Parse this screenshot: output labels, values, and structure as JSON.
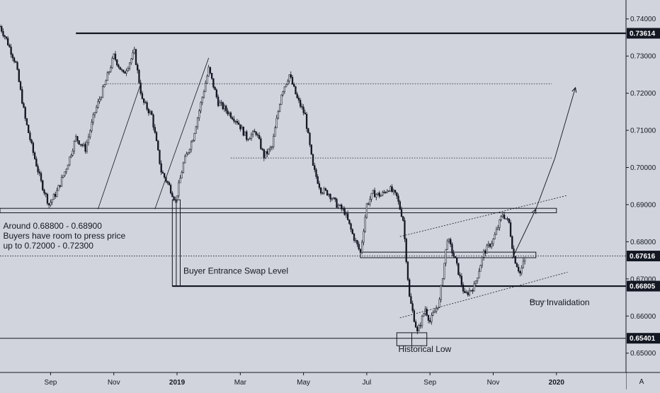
{
  "chart_data": {
    "type": "candlestick",
    "symbol_scale_button": "A",
    "y_axis": {
      "ylim": [
        0.6448,
        0.7451
      ],
      "ticks": [
        "0.74000",
        "0.73000",
        "0.72000",
        "0.71000",
        "0.70000",
        "0.69000",
        "0.68000",
        "0.67000",
        "0.66000",
        "0.65000"
      ],
      "tick_values": [
        0.74,
        0.73,
        0.72,
        0.71,
        0.7,
        0.69,
        0.68,
        0.67,
        0.66,
        0.65
      ]
    },
    "x_axis": {
      "ticks": [
        "Sep",
        "Nov",
        "2019",
        "Mar",
        "May",
        "Jul",
        "Sep",
        "Nov",
        "2020"
      ],
      "tick_positions": [
        0,
        2,
        4,
        6,
        8,
        10,
        12,
        14,
        16
      ],
      "bold_ticks": [
        "2019",
        "2020"
      ],
      "xlim": [
        -1.6,
        18.2
      ]
    },
    "price_labels": [
      {
        "text": "0.73614",
        "value": 0.73614
      },
      {
        "text": "0.67616",
        "value": 0.67616
      },
      {
        "text": "0.66805",
        "value": 0.66805
      },
      {
        "text": "0.65401",
        "value": 0.65401
      }
    ],
    "horizontal_levels": [
      {
        "value": 0.73614,
        "x_start": 0.8,
        "style": "solid-thick"
      },
      {
        "value": 0.66805,
        "x_start": 3.85,
        "style": "solid-thick"
      },
      {
        "value": 0.65401,
        "x_start": -1.6,
        "style": "solid"
      },
      {
        "value": 0.67616,
        "x_start": -1.6,
        "style": "dotted"
      },
      {
        "value": 0.72255,
        "x_start": 1.8,
        "x_end": 15.85,
        "style": "dotted"
      },
      {
        "value": 0.70255,
        "x_start": 5.7,
        "x_end": 15.85,
        "style": "dotted"
      },
      {
        "value": 0.66405,
        "x_start": 15.15,
        "x_end": 15.85,
        "style": "dotted"
      }
    ],
    "zones": [
      {
        "x_start": -1.6,
        "x_end": 16.0,
        "low": 0.6878,
        "high": 0.689
      },
      {
        "x_start": 9.8,
        "x_end": 15.35,
        "low": 0.6757,
        "high": 0.6772
      }
    ],
    "markers": [
      {
        "x_start": 3.85,
        "x_end": 4.1,
        "low": 0.66805,
        "high": 0.6913
      },
      {
        "x_start": 10.95,
        "x_end": 11.9,
        "low": 0.652,
        "high": 0.6555
      }
    ],
    "annotations": [
      {
        "lines": [
          "Around 0.68800 - 0.68900",
          "Buyers have room to press price",
          "up to 0.72000 - 0.72300"
        ],
        "x": -1.5,
        "value": 0.6835
      },
      {
        "lines": [
          "Buyer Entrance Swap Level"
        ],
        "x": 4.2,
        "value": 0.6714
      },
      {
        "lines": [
          "Buy Invalidation"
        ],
        "x": 15.15,
        "value": 0.6629
      },
      {
        "lines": [
          "Historical Low"
        ],
        "x": 11.0,
        "value": 0.6503
      }
    ],
    "trend_lines": [
      {
        "x": [
          3.3,
          5.0
        ],
        "values": [
          0.6888,
          0.7295
        ],
        "style": "solid-thin"
      },
      {
        "x": [
          1.5,
          2.85
        ],
        "values": [
          0.6888,
          0.7225
        ],
        "style": "solid-thin"
      },
      {
        "x": [
          11.05,
          16.35
        ],
        "values": [
          0.6814,
          0.6925
        ],
        "style": "dashed"
      },
      {
        "x": [
          11.05,
          16.35
        ],
        "values": [
          0.6595,
          0.6718
        ],
        "style": "dashed"
      }
    ],
    "projection": {
      "x": [
        14.6,
        15.35,
        15.95,
        16.6
      ],
      "values": [
        0.6755,
        0.6888,
        0.7025,
        0.7215
      ]
    },
    "close_path": {
      "x": [
        -1.6,
        -1.4,
        -1.1,
        -0.8,
        -0.55,
        -0.3,
        -0.05,
        0.2,
        0.5,
        0.8,
        1.1,
        1.4,
        1.7,
        2.0,
        2.3,
        2.65,
        2.9,
        3.2,
        3.5,
        3.75,
        3.95,
        4.2,
        4.5,
        4.8,
        5.0,
        5.3,
        5.6,
        5.9,
        6.2,
        6.5,
        6.75,
        7.0,
        7.3,
        7.55,
        7.8,
        8.05,
        8.3,
        8.55,
        8.8,
        9.05,
        9.3,
        9.55,
        9.8,
        10.0,
        10.2,
        10.45,
        10.7,
        10.95,
        11.15,
        11.35,
        11.6,
        11.85,
        12.0,
        12.3,
        12.55,
        12.8,
        13.1,
        13.4,
        13.7,
        14.0,
        14.3,
        14.5,
        14.65,
        14.85,
        15.0
      ],
      "values": [
        0.738,
        0.7345,
        0.728,
        0.713,
        0.704,
        0.696,
        0.69,
        0.6935,
        0.7,
        0.708,
        0.705,
        0.715,
        0.722,
        0.73,
        0.725,
        0.731,
        0.718,
        0.714,
        0.699,
        0.695,
        0.691,
        0.701,
        0.708,
        0.719,
        0.7265,
        0.7175,
        0.715,
        0.7125,
        0.708,
        0.7095,
        0.703,
        0.7055,
        0.72,
        0.725,
        0.7185,
        0.714,
        0.7,
        0.694,
        0.693,
        0.69,
        0.688,
        0.682,
        0.677,
        0.69,
        0.693,
        0.6925,
        0.6945,
        0.692,
        0.686,
        0.665,
        0.6555,
        0.662,
        0.6585,
        0.664,
        0.681,
        0.675,
        0.6655,
        0.668,
        0.677,
        0.6805,
        0.6875,
        0.685,
        0.676,
        0.6715,
        0.6755
      ]
    }
  }
}
